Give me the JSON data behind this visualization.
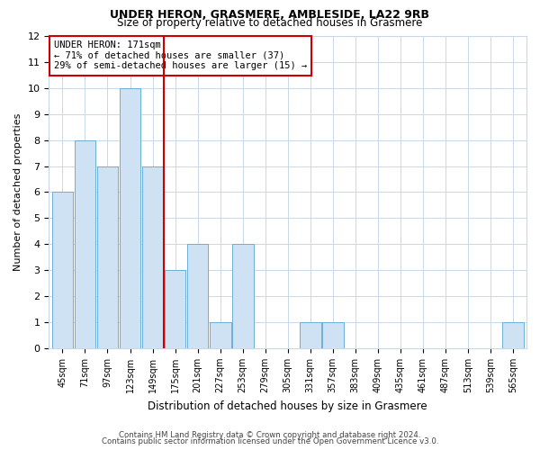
{
  "title": "UNDER HERON, GRASMERE, AMBLESIDE, LA22 9RB",
  "subtitle": "Size of property relative to detached houses in Grasmere",
  "xlabel": "Distribution of detached houses by size in Grasmere",
  "ylabel": "Number of detached properties",
  "bin_labels": [
    "45sqm",
    "71sqm",
    "97sqm",
    "123sqm",
    "149sqm",
    "175sqm",
    "201sqm",
    "227sqm",
    "253sqm",
    "279sqm",
    "305sqm",
    "331sqm",
    "357sqm",
    "383sqm",
    "409sqm",
    "435sqm",
    "461sqm",
    "487sqm",
    "513sqm",
    "539sqm",
    "565sqm"
  ],
  "counts": [
    6,
    8,
    7,
    10,
    7,
    3,
    4,
    1,
    4,
    0,
    0,
    1,
    1,
    0,
    0,
    0,
    0,
    0,
    0,
    0,
    1
  ],
  "bar_facecolor": "#cfe2f3",
  "bar_edgecolor": "#6baed6",
  "grid_color": "#c8d8e8",
  "vline_index": 5,
  "vline_color": "#cc0000",
  "annotation_title": "UNDER HERON: 171sqm",
  "annotation_line1": "← 71% of detached houses are smaller (37)",
  "annotation_line2": "29% of semi-detached houses are larger (15) →",
  "annotation_box_color": "#ffffff",
  "annotation_border_color": "#cc0000",
  "ylim": [
    0,
    12
  ],
  "yticks": [
    0,
    1,
    2,
    3,
    4,
    5,
    6,
    7,
    8,
    9,
    10,
    11,
    12
  ],
  "footer_line1": "Contains HM Land Registry data © Crown copyright and database right 2024.",
  "footer_line2": "Contains public sector information licensed under the Open Government Licence v3.0.",
  "background_color": "#ffffff",
  "plot_bg_color": "#ffffff"
}
